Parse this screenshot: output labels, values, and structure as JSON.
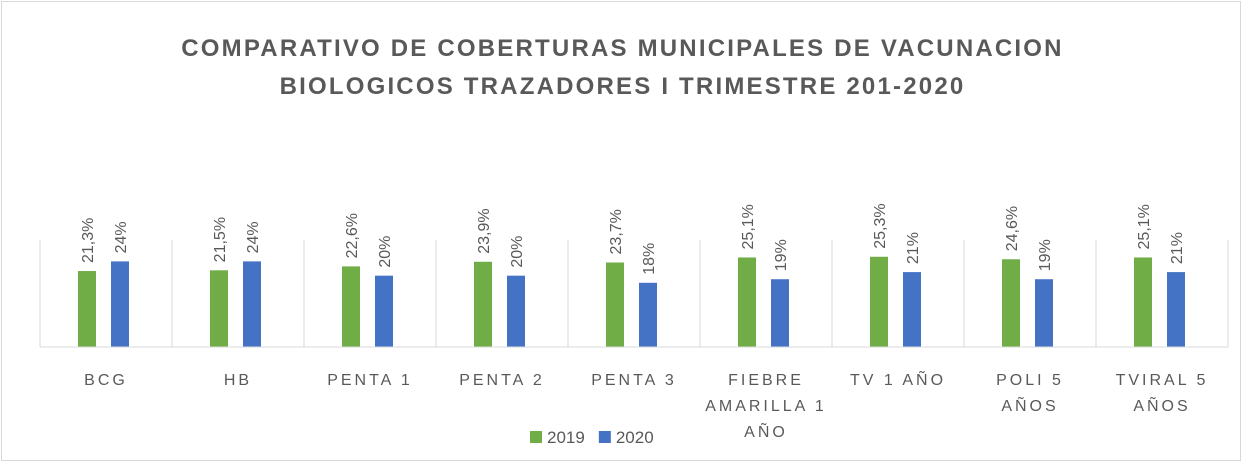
{
  "chart_data": {
    "type": "bar",
    "title": "COMPARATIVO DE COBERTURAS MUNICIPALES DE VACUNACION BIOLOGICOS TRAZADORES I TRIMESTRE 201-2020",
    "categories": [
      "BCG",
      "HB",
      "PENTA 1",
      "PENTA 2",
      "PENTA 3",
      "FIEBRE AMARILLA 1 AÑO",
      "TV 1 AÑO",
      "POLI 5 AÑOS",
      "TVIRAL 5 AÑOS"
    ],
    "series": [
      {
        "name": "2019",
        "color": "#70ad47",
        "values": [
          21.3,
          21.5,
          22.6,
          23.9,
          23.7,
          25.1,
          25.3,
          24.6,
          25.1
        ],
        "value_labels": [
          "21,3%",
          "21,5%",
          "22,6%",
          "23,9%",
          "23,7%",
          "25,1%",
          "25,3%",
          "24,6%",
          "25,1%"
        ]
      },
      {
        "name": "2020",
        "color": "#4472c4",
        "values": [
          24,
          24,
          20,
          20,
          18,
          19,
          21,
          19,
          21
        ],
        "value_labels": [
          "24%",
          "24%",
          "20%",
          "20%",
          "18%",
          "19%",
          "21%",
          "19%",
          "21%"
        ]
      }
    ],
    "ylim": [
      0,
      30
    ]
  }
}
